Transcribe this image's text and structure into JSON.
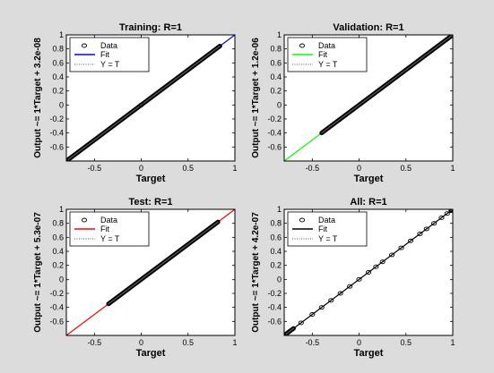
{
  "window": {
    "background": "#dcdcdc"
  },
  "chart_data": [
    {
      "type": "scatter",
      "title": "Training: R=1",
      "xlabel": "Target",
      "ylabel": "Output ~= 1*Target + 3.2e-08",
      "xlim": [
        -0.8,
        1.0
      ],
      "ylim": [
        -0.8,
        1.0
      ],
      "xticks": [
        -0.5,
        0,
        0.5,
        1
      ],
      "xtick_labels": [
        "-0.5",
        "0",
        "0.5",
        "1"
      ],
      "yticks": [
        -0.6,
        -0.4,
        -0.2,
        0,
        0.2,
        0.4,
        0.6,
        0.8,
        1
      ],
      "ytick_labels": [
        "-0.6",
        "-0.4",
        "-0.2",
        "0",
        "0.2",
        "0.4",
        "0.6",
        "0.8",
        "1"
      ],
      "grid": false,
      "legend_position": "top-left",
      "legend": [
        "Data",
        "Fit",
        "Y = T"
      ],
      "fit_color": "#0000ff",
      "fit": {
        "slope": 1,
        "intercept": 3.2e-08,
        "x_range": [
          -0.8,
          1.0
        ]
      },
      "data_segments": [
        [
          -0.78,
          0.84
        ]
      ],
      "data_points": [
        0.0
      ]
    },
    {
      "type": "scatter",
      "title": "Validation: R=1",
      "xlabel": "Target",
      "ylabel": "Output ~= 1*Target + 1.2e-06",
      "xlim": [
        -0.8,
        1.0
      ],
      "ylim": [
        -0.8,
        1.0
      ],
      "xticks": [
        -0.5,
        0,
        0.5,
        1
      ],
      "xtick_labels": [
        "-0.5",
        "0",
        "0.5",
        "1"
      ],
      "yticks": [
        -0.6,
        -0.4,
        -0.2,
        0,
        0.2,
        0.4,
        0.6,
        0.8,
        1
      ],
      "ytick_labels": [
        "-0.6",
        "-0.4",
        "-0.2",
        "0",
        "0.2",
        "0.4",
        "0.6",
        "0.8",
        "1"
      ],
      "grid": false,
      "legend_position": "top-left",
      "legend": [
        "Data",
        "Fit",
        "Y = T"
      ],
      "fit_color": "#00ff00",
      "fit": {
        "slope": 1,
        "intercept": 1.2e-06,
        "x_range": [
          -0.8,
          1.0
        ]
      },
      "data_segments": [
        [
          -0.4,
          1.0
        ]
      ],
      "data_points": []
    },
    {
      "type": "scatter",
      "title": "Test: R=1",
      "xlabel": "Target",
      "ylabel": "Output ~= 1*Target + 5.3e-07",
      "xlim": [
        -0.8,
        1.0
      ],
      "ylim": [
        -0.8,
        1.0
      ],
      "xticks": [
        -0.5,
        0,
        0.5,
        1
      ],
      "xtick_labels": [
        "-0.5",
        "0",
        "0.5",
        "1"
      ],
      "yticks": [
        -0.6,
        -0.4,
        -0.2,
        0,
        0.2,
        0.4,
        0.6,
        0.8,
        1
      ],
      "ytick_labels": [
        "-0.6",
        "-0.4",
        "-0.2",
        "0",
        "0.2",
        "0.4",
        "0.6",
        "0.8",
        "1"
      ],
      "grid": false,
      "legend_position": "top-left",
      "legend": [
        "Data",
        "Fit",
        "Y = T"
      ],
      "fit_color": "#ff0000",
      "fit": {
        "slope": 1,
        "intercept": 5.3e-07,
        "x_range": [
          -0.8,
          1.0
        ]
      },
      "data_segments": [
        [
          -0.35,
          0.82
        ]
      ],
      "data_points": []
    },
    {
      "type": "scatter",
      "title": "All: R=1",
      "xlabel": "Target",
      "ylabel": "Output ~= 1*Target + 4.2e-07",
      "xlim": [
        -0.8,
        1.0
      ],
      "ylim": [
        -0.8,
        1.0
      ],
      "xticks": [
        -0.5,
        0,
        0.5,
        1
      ],
      "xtick_labels": [
        "-0.5",
        "0",
        "0.5",
        "1"
      ],
      "yticks": [
        -0.6,
        -0.4,
        -0.2,
        0,
        0.2,
        0.4,
        0.6,
        0.8,
        1
      ],
      "ytick_labels": [
        "-0.6",
        "-0.4",
        "-0.2",
        "0",
        "0.2",
        "0.4",
        "0.6",
        "0.8",
        "1"
      ],
      "grid": false,
      "legend_position": "top-left",
      "legend": [
        "Data",
        "Fit",
        "Y = T"
      ],
      "fit_color": "#000000",
      "fit": {
        "slope": 1,
        "intercept": 4.2e-07,
        "x_range": [
          -0.8,
          1.0
        ]
      },
      "data_segments": [
        [
          -0.78,
          -0.7
        ],
        [
          0.98,
          1.0
        ]
      ],
      "data_points": [
        -0.62,
        -0.5,
        -0.4,
        -0.3,
        -0.2,
        -0.1,
        0.0,
        0.1,
        0.18,
        0.25,
        0.35,
        0.45,
        0.55,
        0.65,
        0.72,
        0.8,
        0.88,
        0.94
      ]
    }
  ]
}
